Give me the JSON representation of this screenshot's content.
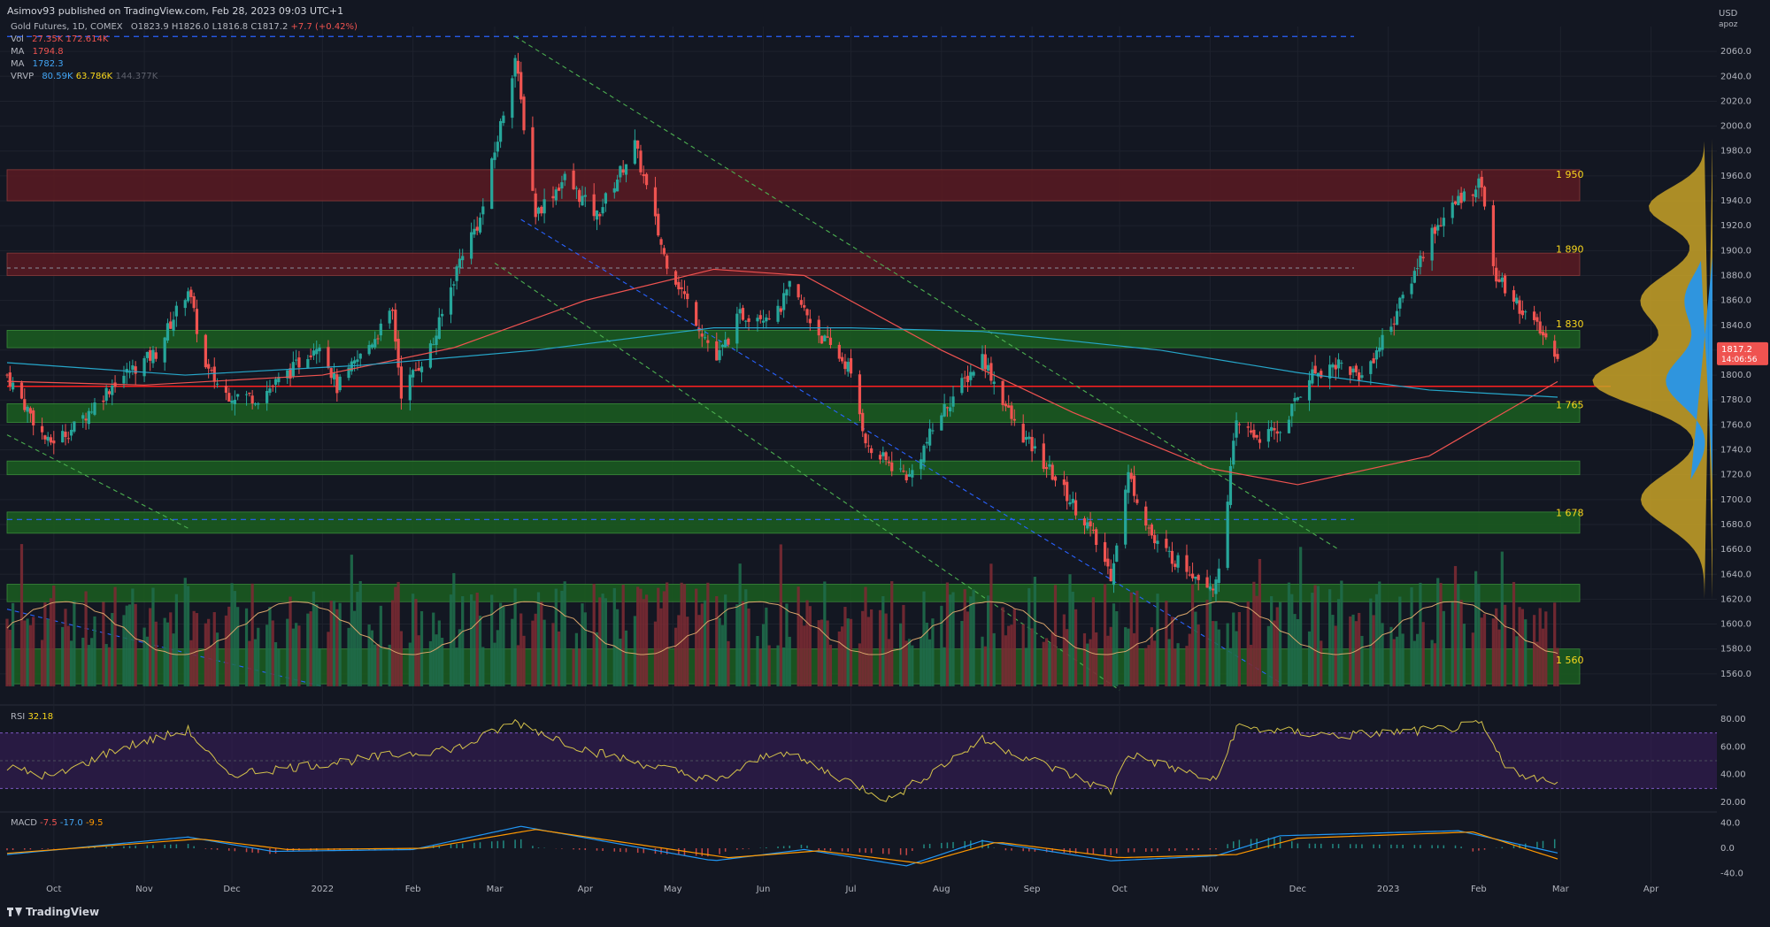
{
  "header": {
    "publisher": "Asimov93 published on TradingView.com, Feb 28, 2023 09:03 UTC+1",
    "symbol": "Gold Futures, 1D, COMEX",
    "ohlc": {
      "o": "O1823.9",
      "h": "H1826.0",
      "l": "L1816.8",
      "c": "C1817.2",
      "chg": "+7.7 (+0.42%)"
    }
  },
  "legend": {
    "vol": {
      "label": "Vol",
      "v1": "27.35K",
      "v2": "172.614K"
    },
    "ma1": {
      "label": "MA",
      "value": "1794.8"
    },
    "ma2": {
      "label": "MA",
      "value": "1782.3"
    },
    "vrvp": {
      "label": "VRVP",
      "v1": "80.59K",
      "v2": "63.786K",
      "v3": "144.377K"
    }
  },
  "price_axis": {
    "currency": "USD",
    "note": "apoz",
    "current_price": "1817.2",
    "countdown": "14:06:56"
  },
  "level_labels": [
    "1 950",
    "1 890",
    "1 830",
    "1 765",
    "1 678",
    "1 560"
  ],
  "rsi": {
    "label": "RSI",
    "value": "32.18",
    "ticks": [
      "80.00",
      "60.00",
      "40.00",
      "20.00"
    ]
  },
  "macd": {
    "label": "MACD",
    "v1": "-7.5",
    "v2": "-17.0",
    "v3": "-9.5",
    "ticks": [
      "40.0",
      "0.0",
      "-40.0"
    ]
  },
  "time_axis": [
    "Oct",
    "Nov",
    "Dec",
    "2022",
    "Feb",
    "Mar",
    "Apr",
    "May",
    "Jun",
    "Jul",
    "Aug",
    "Sep",
    "Oct",
    "Nov",
    "Dec",
    "2023",
    "Feb",
    "Mar",
    "Apr"
  ],
  "branding": "TradingView",
  "colors": {
    "bg": "#131722",
    "up": "#26a69a",
    "down": "#ef5350",
    "ma_fast": "#ef5350",
    "ma_slow": "#26a6c9",
    "zone_green": "#1b5e20",
    "zone_red": "#5b1a22",
    "rsi": "#d4c24a",
    "rsi_band": "#3b1e5c",
    "macd": "#2196f3",
    "signal": "#ff9800",
    "support_line": "#ff2020"
  },
  "chart_data": [
    {
      "type": "candlestick",
      "title": "Gold Futures, 1D, COMEX",
      "x_range": [
        "2021-09-15",
        "2023-02-28"
      ],
      "ylim": [
        1540,
        2080
      ],
      "yticks": [
        1560,
        1580,
        1600,
        1620,
        1640,
        1660,
        1680,
        1700,
        1720,
        1740,
        1760,
        1780,
        1800,
        1820,
        1840,
        1860,
        1880,
        1900,
        1920,
        1940,
        1960,
        1980,
        2000,
        2020,
        2040,
        2060
      ],
      "x_ticks": [
        "Oct",
        "Nov",
        "Dec",
        "2022",
        "Feb",
        "Mar",
        "Apr",
        "May",
        "Jun",
        "Jul",
        "Aug",
        "Sep",
        "Oct",
        "Nov",
        "Dec",
        "2023",
        "Feb",
        "Mar",
        "Apr"
      ],
      "close_path": [
        [
          "2021-09-15",
          1800
        ],
        [
          "2021-09-29",
          1745
        ],
        [
          "2021-10-08",
          1758
        ],
        [
          "2021-10-22",
          1795
        ],
        [
          "2021-11-05",
          1818
        ],
        [
          "2021-11-16",
          1870
        ],
        [
          "2021-11-22",
          1805
        ],
        [
          "2021-11-29",
          1785
        ],
        [
          "2021-12-10",
          1782
        ],
        [
          "2021-12-22",
          1805
        ],
        [
          "2021-12-31",
          1828
        ],
        [
          "2022-01-06",
          1790
        ],
        [
          "2022-01-14",
          1815
        ],
        [
          "2022-01-25",
          1850
        ],
        [
          "2022-01-28",
          1786
        ],
        [
          "2022-02-08",
          1826
        ],
        [
          "2022-02-18",
          1900
        ],
        [
          "2022-02-24",
          1925
        ],
        [
          "2022-03-08",
          2055
        ],
        [
          "2022-03-15",
          1930
        ],
        [
          "2022-03-25",
          1958
        ],
        [
          "2022-04-05",
          1928
        ],
        [
          "2022-04-18",
          1985
        ],
        [
          "2022-04-28",
          1896
        ],
        [
          "2022-05-04",
          1868
        ],
        [
          "2022-05-16",
          1812
        ],
        [
          "2022-05-24",
          1848
        ],
        [
          "2022-06-06",
          1850
        ],
        [
          "2022-06-10",
          1870
        ],
        [
          "2022-06-21",
          1830
        ],
        [
          "2022-06-30",
          1807
        ],
        [
          "2022-07-07",
          1740
        ],
        [
          "2022-07-21",
          1718
        ],
        [
          "2022-08-01",
          1770
        ],
        [
          "2022-08-15",
          1815
        ],
        [
          "2022-08-26",
          1760
        ],
        [
          "2022-09-08",
          1720
        ],
        [
          "2022-09-20",
          1680
        ],
        [
          "2022-09-28",
          1640
        ],
        [
          "2022-10-04",
          1720
        ],
        [
          "2022-10-13",
          1665
        ],
        [
          "2022-10-21",
          1650
        ],
        [
          "2022-11-03",
          1630
        ],
        [
          "2022-11-10",
          1760
        ],
        [
          "2022-11-18",
          1750
        ],
        [
          "2022-11-25",
          1755
        ],
        [
          "2022-12-05",
          1800
        ],
        [
          "2022-12-15",
          1810
        ],
        [
          "2022-12-23",
          1798
        ],
        [
          "2023-01-03",
          1846
        ],
        [
          "2023-01-16",
          1915
        ],
        [
          "2023-01-26",
          1943
        ],
        [
          "2023-02-02",
          1955
        ],
        [
          "2023-02-06",
          1882
        ],
        [
          "2023-02-16",
          1852
        ],
        [
          "2023-02-28",
          1817.2
        ]
      ],
      "series": [
        {
          "name": "MA",
          "kind": "line",
          "values": [
            [
              "2021-09-15",
              1795
            ],
            [
              "2021-11-01",
              1792
            ],
            [
              "2022-01-01",
              1800
            ],
            [
              "2022-02-15",
              1822
            ],
            [
              "2022-04-01",
              1860
            ],
            [
              "2022-05-15",
              1885
            ],
            [
              "2022-06-15",
              1880
            ],
            [
              "2022-08-01",
              1820
            ],
            [
              "2022-09-15",
              1770
            ],
            [
              "2022-11-01",
              1725
            ],
            [
              "2022-12-01",
              1712
            ],
            [
              "2023-01-15",
              1735
            ],
            [
              "2023-02-28",
              1794.8
            ]
          ]
        },
        {
          "name": "MA",
          "kind": "line",
          "values": [
            [
              "2021-09-15",
              1810
            ],
            [
              "2021-11-15",
              1800
            ],
            [
              "2022-01-15",
              1808
            ],
            [
              "2022-03-15",
              1820
            ],
            [
              "2022-05-15",
              1838
            ],
            [
              "2022-07-01",
              1838
            ],
            [
              "2022-08-15",
              1835
            ],
            [
              "2022-10-15",
              1820
            ],
            [
              "2022-12-01",
              1802
            ],
            [
              "2023-01-15",
              1788
            ],
            [
              "2023-02-28",
              1782.3
            ]
          ]
        }
      ],
      "zones": [
        {
          "kind": "resistance",
          "from": 1940,
          "to": 1965,
          "label": "1 950"
        },
        {
          "kind": "resistance",
          "from": 1880,
          "to": 1898,
          "label": "1 890"
        },
        {
          "kind": "support",
          "from": 1822,
          "to": 1836,
          "label": "1 830"
        },
        {
          "kind": "support",
          "from": 1762,
          "to": 1777,
          "label": ""
        },
        {
          "kind": "support",
          "from": 1720,
          "to": 1731,
          "label": ""
        },
        {
          "kind": "support",
          "from": 1673,
          "to": 1690,
          "label": "1 678"
        },
        {
          "kind": "support",
          "from": 1618,
          "to": 1632,
          "label": ""
        },
        {
          "kind": "support",
          "from": 1552,
          "to": 1580,
          "label": "1 560"
        }
      ],
      "support_line": 1791,
      "annotations": [
        "1 950",
        "1 890",
        "1 830",
        "1 765",
        "1 678",
        "1 560"
      ]
    },
    {
      "type": "line",
      "title": "RSI",
      "ylim": [
        15,
        85
      ],
      "values": [
        [
          "2021-09-15",
          45
        ],
        [
          "2021-10-01",
          38
        ],
        [
          "2021-10-22",
          58
        ],
        [
          "2021-11-16",
          72
        ],
        [
          "2021-11-29",
          40
        ],
        [
          "2022-01-10",
          50
        ],
        [
          "2022-02-18",
          60
        ],
        [
          "2022-03-08",
          78
        ],
        [
          "2022-04-01",
          58
        ],
        [
          "2022-05-16",
          35
        ],
        [
          "2022-06-06",
          58
        ],
        [
          "2022-07-14",
          22
        ],
        [
          "2022-08-15",
          65
        ],
        [
          "2022-09-28",
          28
        ],
        [
          "2022-10-04",
          55
        ],
        [
          "2022-11-03",
          35
        ],
        [
          "2022-11-10",
          74
        ],
        [
          "2022-12-15",
          68
        ],
        [
          "2023-01-16",
          72
        ],
        [
          "2023-02-02",
          76
        ],
        [
          "2023-02-10",
          45
        ],
        [
          "2023-02-28",
          32.18
        ]
      ],
      "bands": [
        30,
        70
      ]
    },
    {
      "type": "line",
      "title": "MACD",
      "ylim": [
        -55,
        55
      ],
      "series": [
        {
          "name": "MACD",
          "values": [
            [
              "2021-09-15",
              -10
            ],
            [
              "2021-11-16",
              18
            ],
            [
              "2021-12-15",
              -5
            ],
            [
              "2022-02-01",
              -2
            ],
            [
              "2022-03-10",
              35
            ],
            [
              "2022-05-15",
              -20
            ],
            [
              "2022-06-15",
              -2
            ],
            [
              "2022-07-20",
              -28
            ],
            [
              "2022-08-15",
              12
            ],
            [
              "2022-09-28",
              -20
            ],
            [
              "2022-11-03",
              -12
            ],
            [
              "2022-11-25",
              20
            ],
            [
              "2023-01-25",
              28
            ],
            [
              "2023-02-28",
              -7.5
            ]
          ]
        },
        {
          "name": "Signal",
          "values": [
            [
              "2021-09-15",
              -8
            ],
            [
              "2021-11-20",
              15
            ],
            [
              "2021-12-20",
              -2
            ],
            [
              "2022-02-05",
              0
            ],
            [
              "2022-03-15",
              30
            ],
            [
              "2022-05-20",
              -15
            ],
            [
              "2022-06-20",
              -4
            ],
            [
              "2022-07-25",
              -24
            ],
            [
              "2022-08-20",
              10
            ],
            [
              "2022-10-01",
              -15
            ],
            [
              "2022-11-10",
              -10
            ],
            [
              "2022-12-01",
              16
            ],
            [
              "2023-01-30",
              26
            ],
            [
              "2023-02-28",
              -17.0
            ]
          ]
        }
      ]
    }
  ]
}
